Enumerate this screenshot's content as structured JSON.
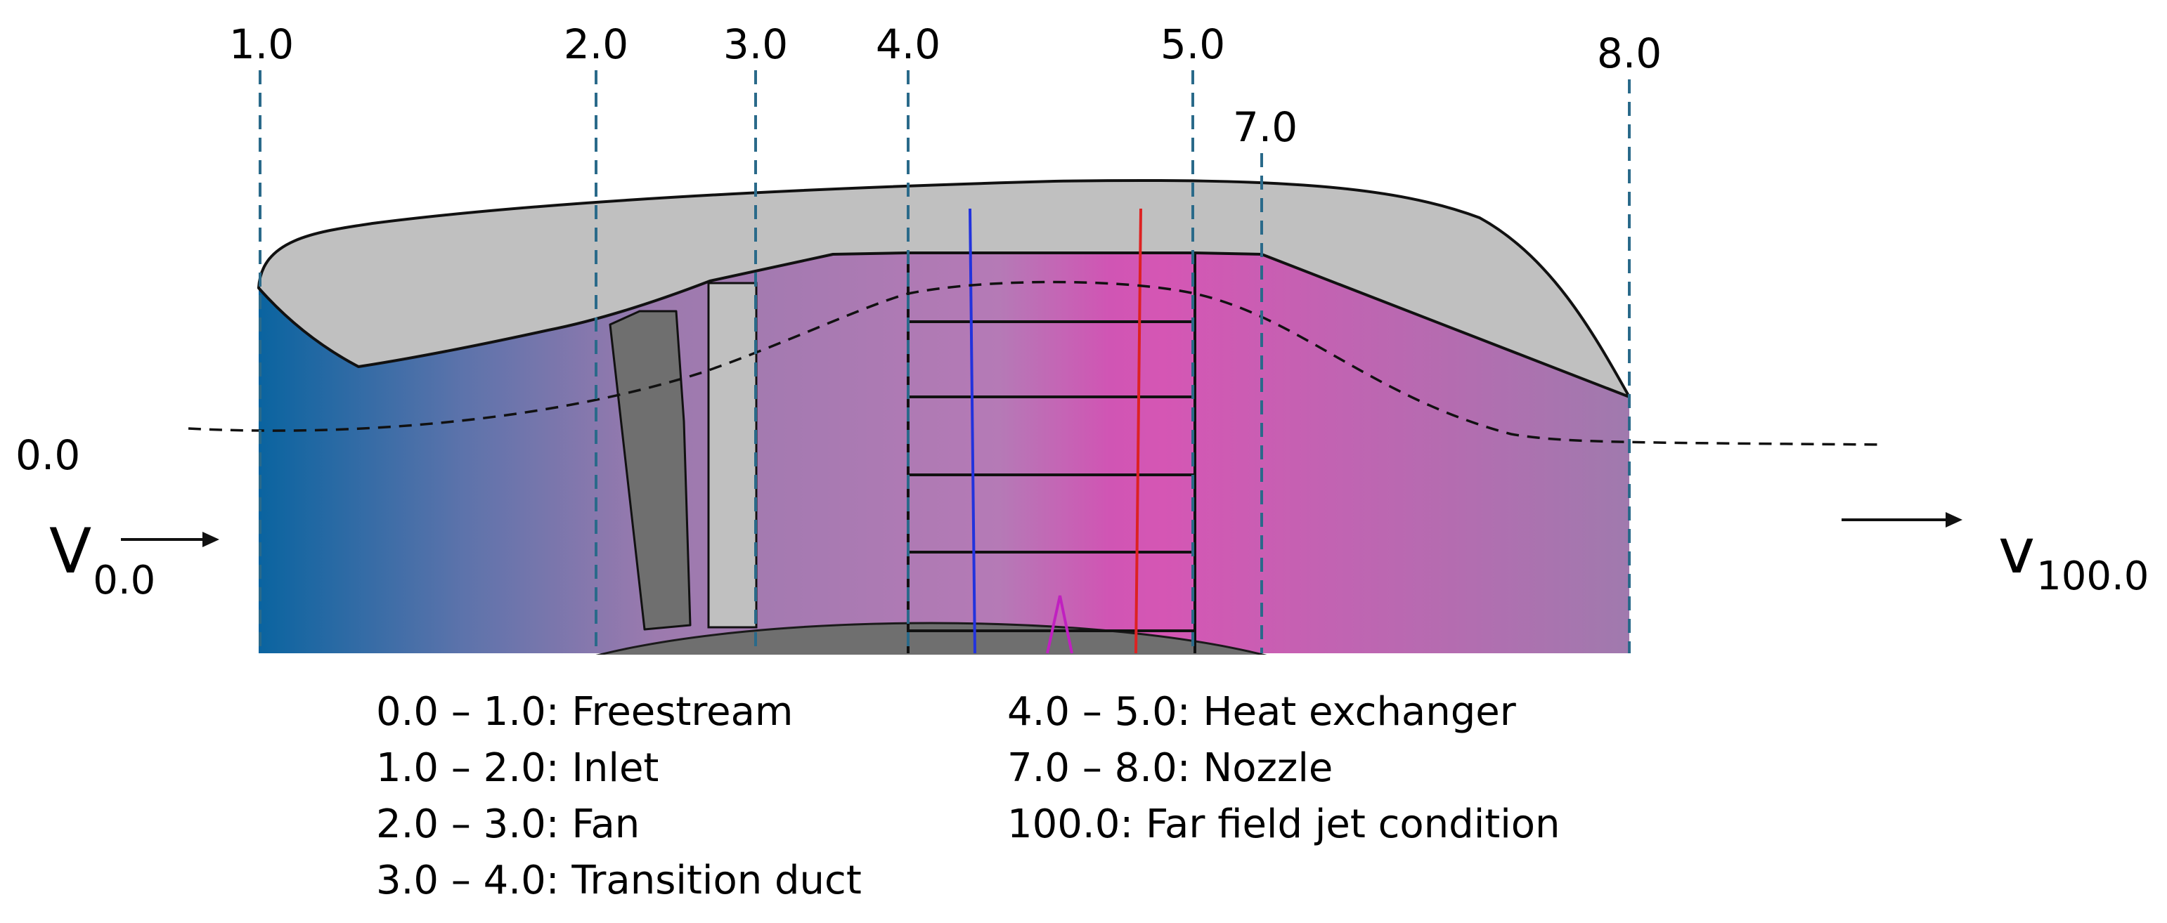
{
  "stations": [
    "1.0",
    "2.0",
    "3.0",
    "4.0",
    "5.0",
    "7.0",
    "8.0"
  ],
  "freestream_station": "0.0",
  "inlet_velocity": {
    "symbol": "V",
    "subscript": "0.0"
  },
  "jet_velocity": {
    "symbol": "v",
    "subscript": "100.0"
  },
  "legend": {
    "left": [
      "0.0 – 1.0: Freestream",
      "1.0 – 2.0: Inlet",
      "2.0 – 3.0: Fan",
      "3.0 – 4.0: Transition duct"
    ],
    "right": [
      "4.0 – 5.0: Heat exchanger",
      "7.0 – 8.0: Nozzle",
      "100.0: Far field jet condition"
    ]
  },
  "colors": {
    "inlet_blue": "#0a64a0",
    "duct_purple": "#a07aae",
    "exchanger_pink": "#d055b4",
    "nacelle_gray": "#c0c0c0",
    "hub_gray": "#6f6f6f",
    "station_line": "#2a6a8a",
    "blue_line": "#2233dd",
    "red_line": "#dd2222",
    "magenta_mark": "#c020c0"
  }
}
